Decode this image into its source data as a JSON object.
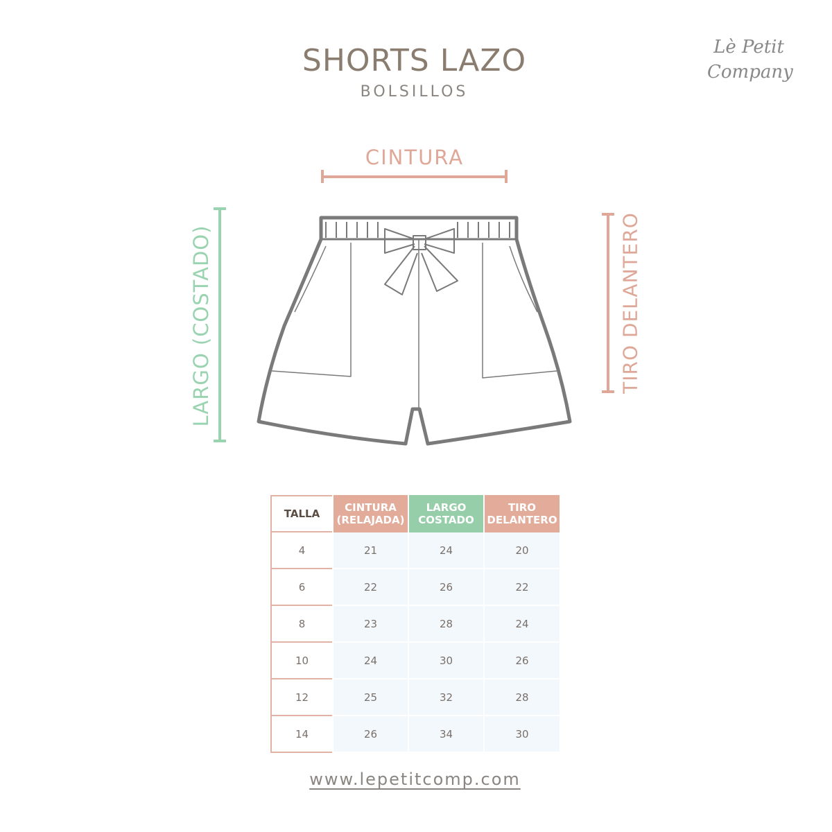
{
  "title": "SHORTS LAZO",
  "subtitle": "BOLSILLOS",
  "logo": "Le Petit Company",
  "diagram": {
    "cintura": "CINTURA",
    "largo": "LARGO (COSTADO)",
    "tiro": "TIRO DELANTERO",
    "colors": {
      "pink": "#dfa797",
      "green": "#9ad3b0",
      "outline": "#7a7a7a"
    }
  },
  "table": {
    "headers": [
      "TALLA",
      "CINTURA (RELAJADA)",
      "LARGO COSTADO",
      "TIRO DELANTERO"
    ],
    "rows": [
      [
        "4",
        "21",
        "24",
        "20"
      ],
      [
        "6",
        "22",
        "26",
        "22"
      ],
      [
        "8",
        "23",
        "28",
        "24"
      ],
      [
        "10",
        "24",
        "30",
        "26"
      ],
      [
        "12",
        "25",
        "32",
        "28"
      ],
      [
        "14",
        "26",
        "34",
        "30"
      ]
    ]
  },
  "url": "www.lepetitcomp.com"
}
